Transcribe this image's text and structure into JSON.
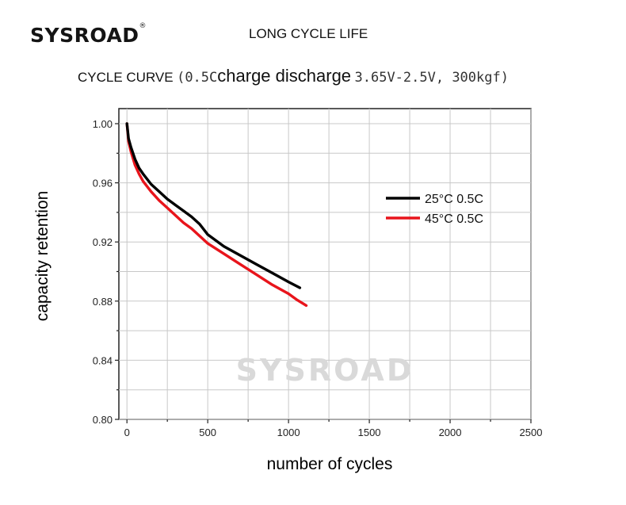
{
  "brand": {
    "name": "SYSROAD",
    "mark": "®"
  },
  "headline": "LONG CYCLE LIFE",
  "subtitle": {
    "part1": "CYCLE CURVE",
    "part2": "(0.5C",
    "part3": "charge discharge",
    "part4": "3.65V-2.5V, 300kgf)"
  },
  "watermark": "SYSROAD",
  "chart_data": {
    "type": "line",
    "xlabel": "number of cycles",
    "ylabel": "capacity retention",
    "xlim": [
      -50,
      2500
    ],
    "ylim": [
      0.8,
      1.0
    ],
    "xticks": [
      0,
      500,
      1000,
      1500,
      2000,
      2500
    ],
    "xtick_labels": [
      "0",
      "500",
      "1000",
      "1500",
      "2000",
      "2500"
    ],
    "yticks": [
      0.8,
      0.84,
      0.88,
      0.92,
      0.96,
      1.0
    ],
    "ytick_labels": [
      "0.80",
      "0.84",
      "0.88",
      "0.92",
      "0.96",
      "1.00"
    ],
    "grid": true,
    "legend_position": "right",
    "series": [
      {
        "name": "25°C 0.5C",
        "color": "#000000",
        "x": [
          0,
          10,
          25,
          50,
          75,
          100,
          150,
          200,
          250,
          300,
          350,
          400,
          450,
          500,
          600,
          700,
          800,
          900,
          1000,
          1070
        ],
        "y": [
          1.0,
          0.99,
          0.984,
          0.976,
          0.97,
          0.966,
          0.959,
          0.954,
          0.949,
          0.945,
          0.941,
          0.937,
          0.932,
          0.925,
          0.917,
          0.911,
          0.905,
          0.899,
          0.893,
          0.889
        ]
      },
      {
        "name": "45°C 0.5C",
        "color": "#e8141b",
        "x": [
          0,
          10,
          25,
          50,
          75,
          100,
          150,
          200,
          250,
          300,
          350,
          400,
          450,
          500,
          600,
          700,
          800,
          900,
          1000,
          1050,
          1110
        ],
        "y": [
          1.0,
          0.988,
          0.981,
          0.972,
          0.966,
          0.961,
          0.954,
          0.948,
          0.943,
          0.938,
          0.933,
          0.929,
          0.924,
          0.919,
          0.912,
          0.905,
          0.898,
          0.891,
          0.885,
          0.881,
          0.877
        ]
      }
    ]
  }
}
